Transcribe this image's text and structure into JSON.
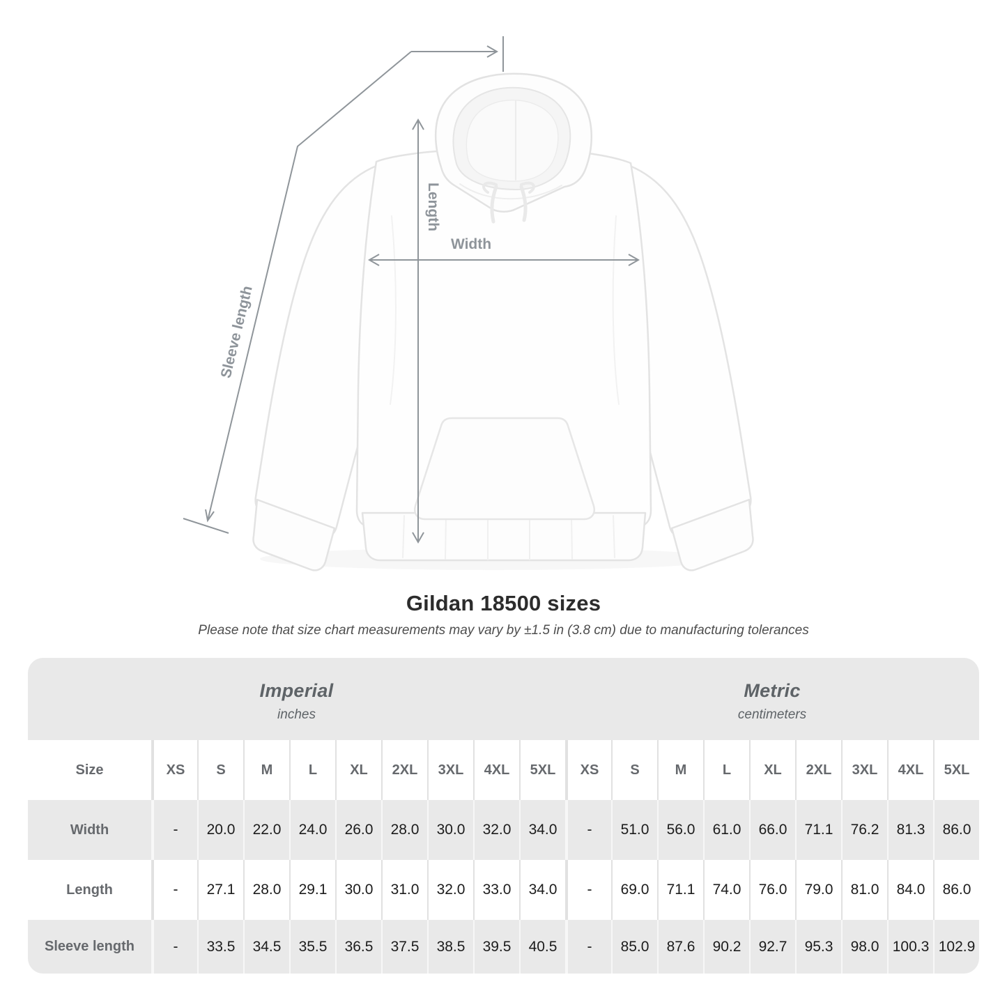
{
  "chart_data": {
    "type": "table",
    "title": "Gildan 18500 sizes",
    "subtitle": "Please note that size chart measurements may vary by ±1.5 in (3.8 cm) due to manufacturing tolerances",
    "groups": [
      {
        "label": "Imperial",
        "unit": "inches"
      },
      {
        "label": "Metric",
        "unit": "centimeters"
      }
    ],
    "size_header": "Size",
    "sizes": [
      "XS",
      "S",
      "M",
      "L",
      "XL",
      "2XL",
      "3XL",
      "4XL",
      "5XL"
    ],
    "rows": [
      {
        "label": "Width",
        "imperial": [
          "-",
          "20.0",
          "22.0",
          "24.0",
          "26.0",
          "28.0",
          "30.0",
          "32.0",
          "34.0"
        ],
        "metric": [
          "-",
          "51.0",
          "56.0",
          "61.0",
          "66.0",
          "71.1",
          "76.2",
          "81.3",
          "86.0"
        ]
      },
      {
        "label": "Length",
        "imperial": [
          "-",
          "27.1",
          "28.0",
          "29.1",
          "30.0",
          "31.0",
          "32.0",
          "33.0",
          "34.0"
        ],
        "metric": [
          "-",
          "69.0",
          "71.1",
          "74.0",
          "76.0",
          "79.0",
          "81.0",
          "84.0",
          "86.0"
        ]
      },
      {
        "label": "Sleeve length",
        "imperial": [
          "-",
          "33.5",
          "34.5",
          "35.5",
          "36.5",
          "37.5",
          "38.5",
          "39.5",
          "40.5"
        ],
        "metric": [
          "-",
          "85.0",
          "87.6",
          "90.2",
          "92.7",
          "95.3",
          "98.0",
          "100.3",
          "102.9"
        ]
      }
    ]
  },
  "diagram": {
    "length_label": "Length",
    "width_label": "Width",
    "sleeve_label": "Sleeve length"
  },
  "colors": {
    "table_band": "#e9e9e9",
    "header_text": "#66696d",
    "value_text": "#1c1c1c",
    "arrow": "#8f959a",
    "diagram_label": "#8e949a"
  }
}
